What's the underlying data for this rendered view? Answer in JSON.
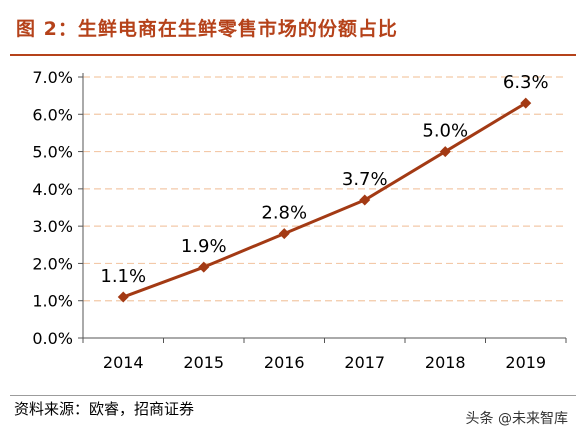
{
  "title": "图 2：生鲜电商在生鲜零售市场的份额占比",
  "source": "资料来源：欧睿，招商证券",
  "watermark": "头条 @未来智库",
  "colors": {
    "title": "#b5421a",
    "line": "#a33a14",
    "grid": "#f3c9a8",
    "axis": "#555555"
  },
  "chart_data": {
    "type": "line",
    "categories": [
      "2014",
      "2015",
      "2016",
      "2017",
      "2018",
      "2019"
    ],
    "series": [
      {
        "values": [
          1.1,
          1.9,
          2.8,
          3.7,
          5.0,
          6.3
        ],
        "labels": [
          "1.1%",
          "1.9%",
          "2.8%",
          "3.7%",
          "5.0%",
          "6.3%"
        ]
      }
    ],
    "y_ticks": [
      "0.0%",
      "1.0%",
      "2.0%",
      "3.0%",
      "4.0%",
      "5.0%",
      "6.0%",
      "7.0%"
    ],
    "ylim": [
      0,
      7
    ],
    "grid": true,
    "marker": "diamond"
  }
}
